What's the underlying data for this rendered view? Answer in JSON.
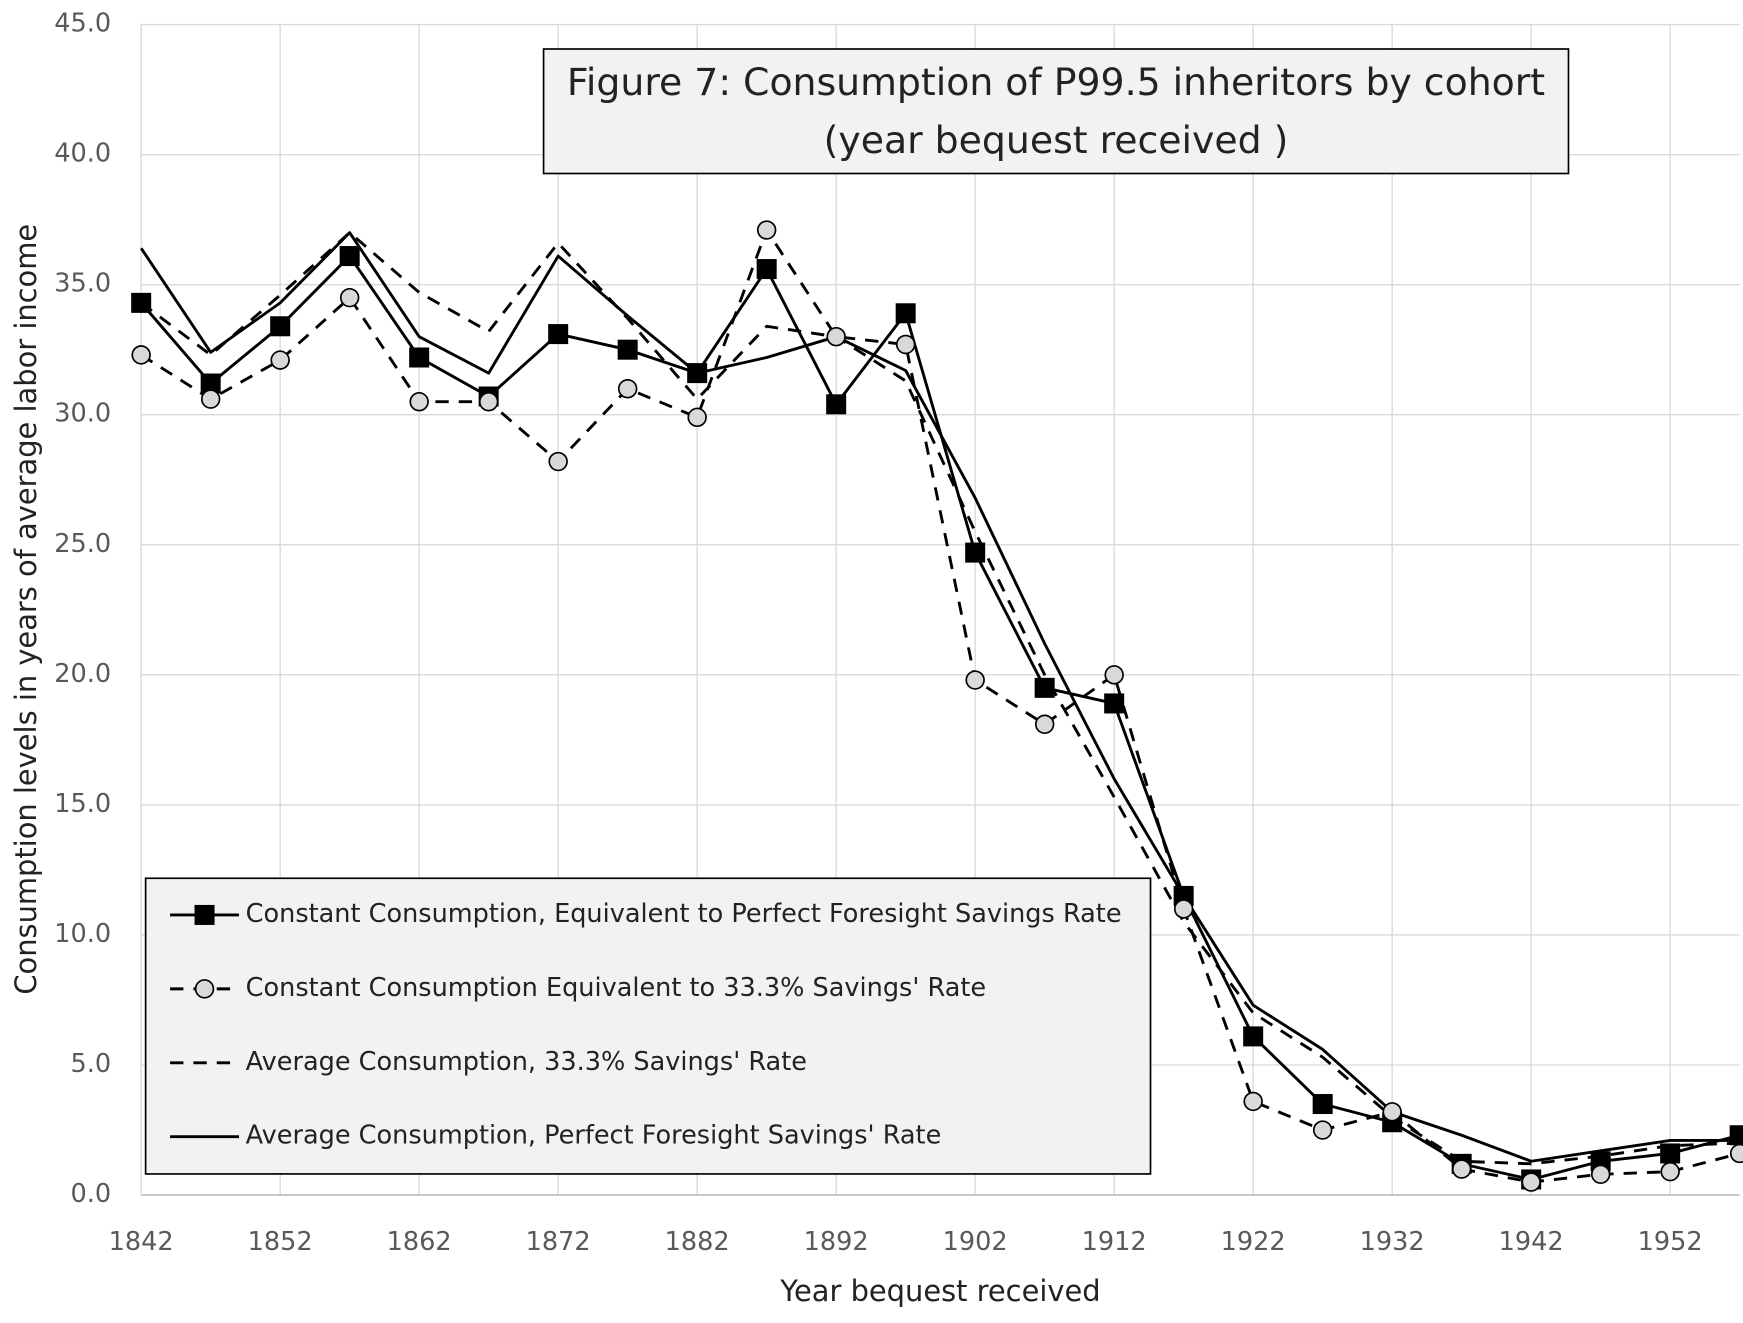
{
  "chart_data": {
    "type": "line",
    "title": [
      "Figure 7: Consumption of P99.5 inheritors by cohort",
      "(year bequest received )"
    ],
    "x_label": "Year bequest received",
    "y_label": "Consumption levels in years of average labor income",
    "x": [
      1842,
      1847,
      1852,
      1857,
      1862,
      1867,
      1872,
      1877,
      1882,
      1887,
      1892,
      1897,
      1902,
      1907,
      1912,
      1917,
      1922,
      1927,
      1932,
      1937,
      1942,
      1947,
      1952,
      1957
    ],
    "xlim": [
      1842,
      1957
    ],
    "xticks": [
      1842,
      1852,
      1862,
      1872,
      1882,
      1892,
      1902,
      1912,
      1922,
      1932,
      1942,
      1952
    ],
    "ylim": [
      0,
      45
    ],
    "yticks": [
      {
        "value": 0,
        "label": "0.0"
      },
      {
        "value": 5,
        "label": "5.0"
      },
      {
        "value": 10,
        "label": "10.0"
      },
      {
        "value": 15,
        "label": "15.0"
      },
      {
        "value": 20,
        "label": "20.0"
      },
      {
        "value": 25,
        "label": "25.0"
      },
      {
        "value": 30,
        "label": "30.0"
      },
      {
        "value": 35,
        "label": "35.0"
      },
      {
        "value": 40,
        "label": "40.0"
      },
      {
        "value": 45,
        "label": "45.0"
      }
    ],
    "grid": true,
    "legend": "lower left",
    "series": [
      {
        "name": "Constant Consumption, Equivalent to Perfect Foresight  Savings Rate",
        "color": "#000000",
        "dash": false,
        "marker": "square",
        "values": [
          34.3,
          31.2,
          33.4,
          36.1,
          32.2,
          30.7,
          33.1,
          32.5,
          31.6,
          35.6,
          30.4,
          33.9,
          24.7,
          19.5,
          18.9,
          11.5,
          6.1,
          3.5,
          2.8,
          1.2,
          0.6,
          1.3,
          1.6,
          2.3
        ]
      },
      {
        "name": "Constant Consumption Equivalent to 33.3% Savings' Rate",
        "color": "#000000",
        "dash": true,
        "marker": "circle",
        "values": [
          32.3,
          30.6,
          32.1,
          34.5,
          30.5,
          30.5,
          28.2,
          31.0,
          29.9,
          37.1,
          33.0,
          32.7,
          19.8,
          18.1,
          20.0,
          11.0,
          3.6,
          2.5,
          3.2,
          1.0,
          0.5,
          0.8,
          0.9,
          1.6
        ]
      },
      {
        "name": "Average Consumption, 33.3% Savings' Rate",
        "color": "#000000",
        "dash": true,
        "marker": "none",
        "values": [
          34.3,
          32.3,
          34.6,
          37.0,
          34.7,
          33.2,
          36.6,
          33.7,
          30.6,
          33.4,
          33.0,
          31.3,
          25.5,
          20.0,
          15.3,
          10.5,
          7.0,
          5.3,
          3.0,
          1.3,
          1.2,
          1.5,
          1.9,
          2.0
        ]
      },
      {
        "name": "Average Consumption, Perfect Foresight Savings' Rate",
        "color": "#000000",
        "dash": false,
        "marker": "none",
        "values": [
          36.4,
          32.4,
          34.3,
          37.0,
          33.0,
          31.6,
          36.1,
          33.8,
          31.6,
          32.2,
          33.0,
          31.7,
          26.8,
          21.2,
          16.0,
          11.5,
          7.3,
          5.6,
          3.2,
          2.3,
          1.3,
          1.7,
          2.1,
          2.1
        ]
      }
    ]
  }
}
